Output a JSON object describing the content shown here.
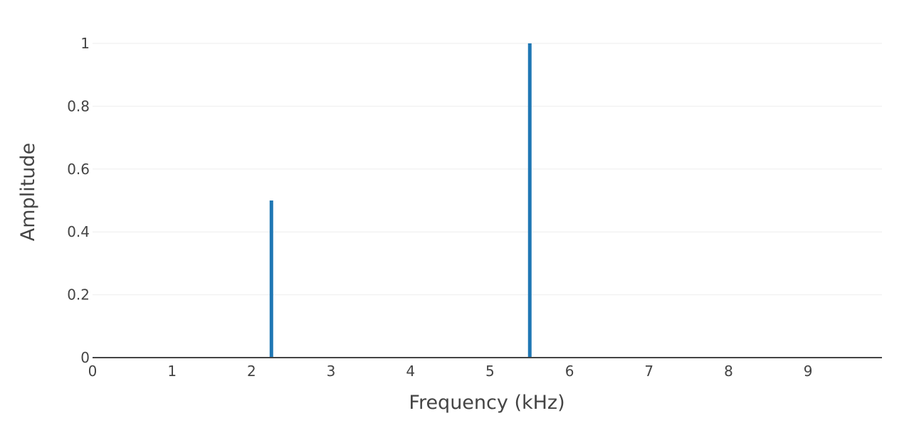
{
  "chart_data": {
    "type": "bar",
    "xlabel": "Frequency (kHz)",
    "ylabel": "Amplitude",
    "xlim": [
      0,
      9.93
    ],
    "ylim": [
      0,
      1
    ],
    "x_ticks": [
      0,
      1,
      2,
      3,
      4,
      5,
      6,
      7,
      8,
      9
    ],
    "x_tick_labels": [
      "0",
      "1",
      "2",
      "3",
      "4",
      "5",
      "6",
      "7",
      "8",
      "9"
    ],
    "y_ticks": [
      0,
      0.2,
      0.4,
      0.6,
      0.8,
      1
    ],
    "y_tick_labels": [
      "0",
      "0.2",
      "0.4",
      "0.6",
      "0.8",
      "1"
    ],
    "grid": true,
    "series": [
      {
        "x": [
          2.25,
          5.5
        ],
        "values": [
          0.5,
          1.0
        ],
        "color": "#1f77b4"
      }
    ]
  }
}
